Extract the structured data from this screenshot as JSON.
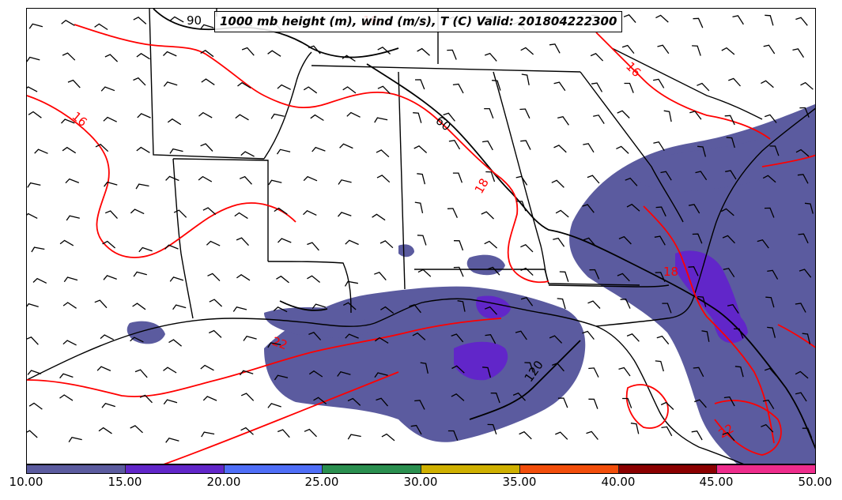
{
  "title": "1000 mb height (m), wind (m/s), T (C) Valid: 201804222300",
  "colorbar": {
    "ticks": [
      "10.00",
      "15.00",
      "20.00",
      "25.00",
      "30.00",
      "35.00",
      "40.00",
      "45.00",
      "50.00"
    ],
    "colors": [
      "#5b5b9f",
      "#6126c9",
      "#4f6ef7",
      "#2a8f4f",
      "#cfb000",
      "#f24e0b",
      "#8b0000",
      "#ee2c8c"
    ]
  },
  "height_contour_labels": [
    "90",
    "60",
    "120"
  ],
  "temperature_contour_labels": [
    "16",
    "16",
    "16",
    "22",
    "22",
    "18",
    "18"
  ],
  "colors": {
    "height_contour": "#000000",
    "temperature_contour": "#ff0000",
    "precip_fill": "#5b5b9f",
    "precip_fill_heavy": "#6126c9"
  }
}
